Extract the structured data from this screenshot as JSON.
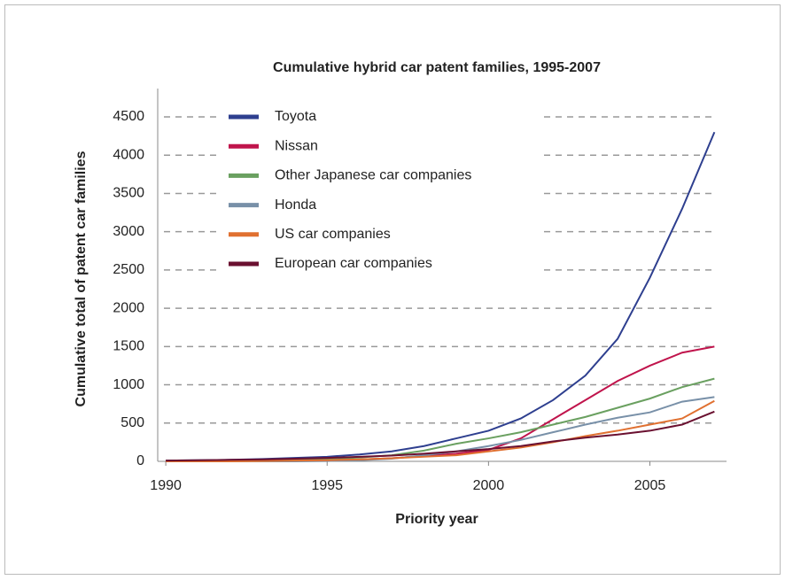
{
  "chart_data": {
    "type": "line",
    "title": "Cumulative hybrid car patent families, 1995-2007",
    "xlabel": "Priority year",
    "ylabel": "Cumulative total of patent car families",
    "x": [
      1990,
      1991,
      1992,
      1993,
      1994,
      1995,
      1996,
      1997,
      1998,
      1999,
      2000,
      2001,
      2002,
      2003,
      2004,
      2005,
      2006,
      2007
    ],
    "series": [
      {
        "name": "Toyota",
        "color": "#2e3f8f",
        "values": [
          10,
          15,
          20,
          30,
          45,
          60,
          90,
          130,
          200,
          300,
          400,
          560,
          800,
          1120,
          1600,
          2400,
          3300,
          4300
        ]
      },
      {
        "name": "Nissan",
        "color": "#c0144c",
        "values": [
          0,
          0,
          0,
          5,
          10,
          15,
          25,
          40,
          70,
          100,
          150,
          300,
          550,
          800,
          1050,
          1250,
          1420,
          1500
        ]
      },
      {
        "name": "Other Japanese car companies",
        "color": "#6aa060",
        "values": [
          5,
          5,
          10,
          15,
          20,
          30,
          50,
          80,
          140,
          230,
          300,
          380,
          480,
          580,
          700,
          820,
          970,
          1080
        ]
      },
      {
        "name": "Honda",
        "color": "#7890a8",
        "values": [
          0,
          0,
          0,
          0,
          0,
          5,
          15,
          35,
          80,
          130,
          200,
          280,
          380,
          480,
          570,
          640,
          780,
          840
        ]
      },
      {
        "name": "US car companies",
        "color": "#e07030",
        "values": [
          0,
          0,
          0,
          5,
          10,
          15,
          25,
          40,
          60,
          80,
          130,
          180,
          250,
          330,
          400,
          480,
          560,
          790
        ]
      },
      {
        "name": "European car companies",
        "color": "#6a1030",
        "values": [
          10,
          15,
          20,
          25,
          35,
          45,
          60,
          75,
          100,
          130,
          160,
          200,
          260,
          310,
          350,
          400,
          480,
          650
        ]
      }
    ],
    "xlim": [
      1989.75,
      2007.1
    ],
    "xticks": [
      1990,
      1995,
      2000,
      2005
    ],
    "ylim": [
      0,
      4500
    ],
    "yticks": [
      0,
      500,
      1000,
      1500,
      2000,
      2500,
      3000,
      3500,
      4000,
      4500
    ],
    "grid": true,
    "legend": "upper left"
  }
}
